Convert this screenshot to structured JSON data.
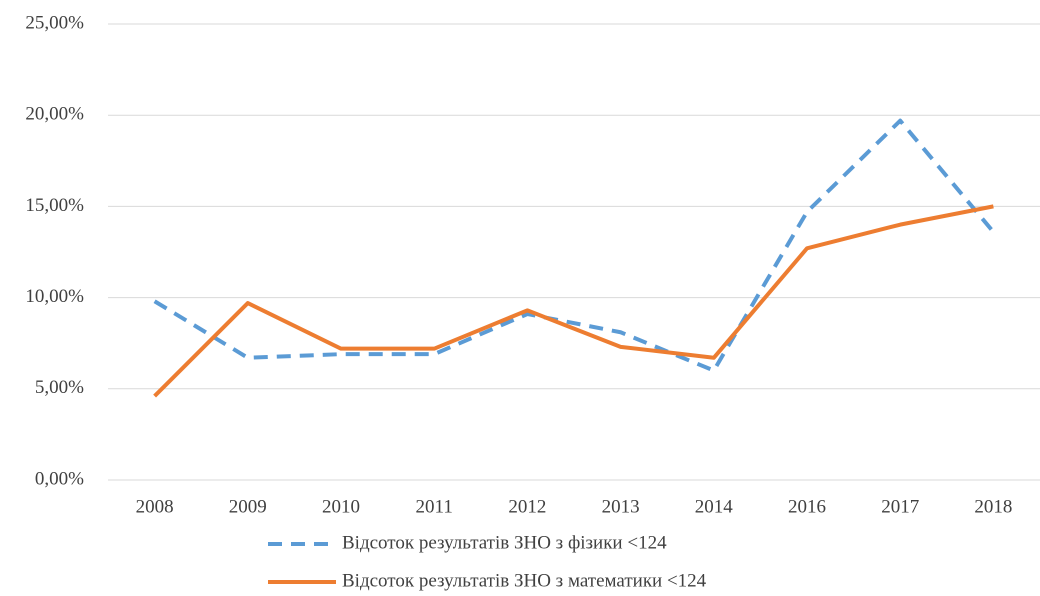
{
  "chart_data": {
    "type": "line",
    "categories": [
      "2008",
      "2009",
      "2010",
      "2011",
      "2012",
      "2013",
      "2014",
      "2016",
      "2017",
      "2018"
    ],
    "series": [
      {
        "name": "Відсоток результатів ЗНО з фізики <124",
        "color": "#5b9bd5",
        "dashed": true,
        "values": [
          9.8,
          6.7,
          6.9,
          6.9,
          9.1,
          8.1,
          6.0,
          14.7,
          19.7,
          13.6
        ]
      },
      {
        "name": "Відсоток результатів ЗНО з математики <124",
        "color": "#ed7d31",
        "dashed": false,
        "values": [
          4.6,
          9.7,
          7.2,
          7.2,
          9.3,
          7.3,
          6.7,
          12.7,
          14.0,
          15.0
        ]
      }
    ],
    "ylim": [
      0,
      25
    ],
    "yticks": [
      {
        "value": 0,
        "label": "0,00%"
      },
      {
        "value": 5,
        "label": "5,00%"
      },
      {
        "value": 10,
        "label": "10,00%"
      },
      {
        "value": 15,
        "label": "15,00%"
      },
      {
        "value": 20,
        "label": "20,00%"
      },
      {
        "value": 25,
        "label": "25,00%"
      }
    ],
    "grid": true,
    "legend": "bottom"
  }
}
